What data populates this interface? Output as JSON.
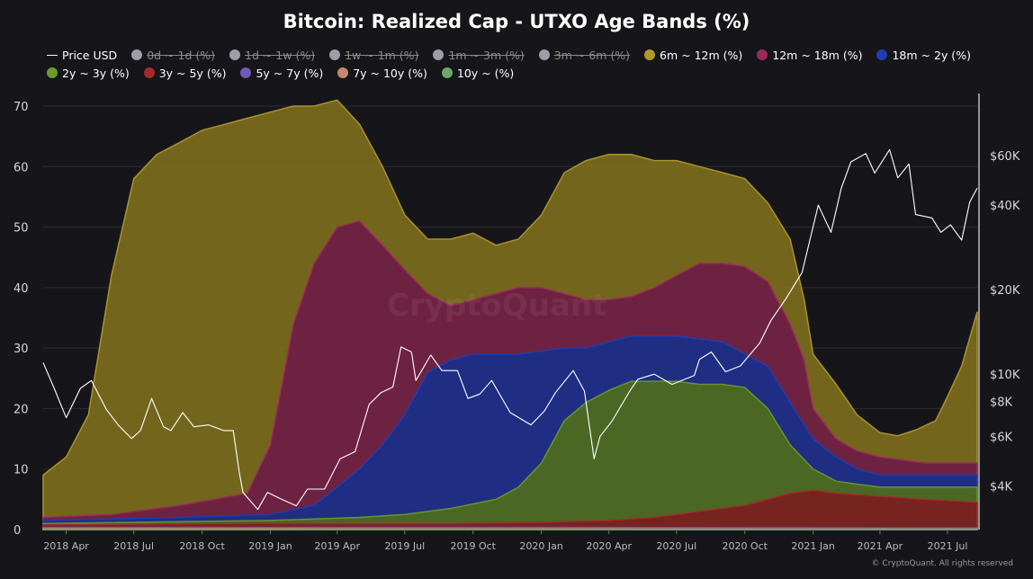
{
  "chart_data": {
    "type": "area",
    "title": "Bitcoin: Realized Cap - UTXO Age Bands (%)",
    "y_left_ticks": [
      0,
      10,
      20,
      30,
      40,
      50,
      60,
      70
    ],
    "y_left_range": [
      0,
      70
    ],
    "y_right_ticks": [
      "$4K",
      "$6K",
      "$8K",
      "$10K",
      "$20K",
      "$40K",
      "$60K"
    ],
    "y_right_values": [
      4000,
      6000,
      8000,
      10000,
      20000,
      40000,
      60000
    ],
    "y_right_scale": "log",
    "x_ticks": [
      "2018 Apr",
      "2018 Jul",
      "2018 Oct",
      "2019 Jan",
      "2019 Apr",
      "2019 Jul",
      "2019 Oct",
      "2020 Jan",
      "2020 Apr",
      "2020 Jul",
      "2020 Oct",
      "2021 Jan",
      "2021 Apr",
      "2021 Jul"
    ],
    "x_range": [
      "2018-03-01",
      "2021-08-10"
    ],
    "legend_position": "top",
    "grid": "horizontal",
    "series": [
      {
        "name": "Price USD",
        "type": "line",
        "axis": "right",
        "color": "#ffffff",
        "visible": true,
        "points": [
          [
            "2018-03-01",
            11000
          ],
          [
            "2018-03-15",
            9000
          ],
          [
            "2018-04-01",
            7000
          ],
          [
            "2018-04-20",
            8900
          ],
          [
            "2018-05-05",
            9500
          ],
          [
            "2018-05-25",
            7500
          ],
          [
            "2018-06-10",
            6600
          ],
          [
            "2018-06-28",
            5900
          ],
          [
            "2018-07-10",
            6300
          ],
          [
            "2018-07-25",
            8200
          ],
          [
            "2018-08-10",
            6500
          ],
          [
            "2018-08-20",
            6300
          ],
          [
            "2018-09-05",
            7300
          ],
          [
            "2018-09-20",
            6500
          ],
          [
            "2018-10-10",
            6600
          ],
          [
            "2018-10-30",
            6300
          ],
          [
            "2018-11-12",
            6300
          ],
          [
            "2018-11-20",
            4500
          ],
          [
            "2018-11-25",
            3800
          ],
          [
            "2018-12-15",
            3300
          ],
          [
            "2018-12-28",
            3800
          ],
          [
            "2019-01-15",
            3600
          ],
          [
            "2019-02-05",
            3400
          ],
          [
            "2019-02-20",
            3900
          ],
          [
            "2019-03-15",
            3900
          ],
          [
            "2019-04-05",
            5000
          ],
          [
            "2019-04-25",
            5300
          ],
          [
            "2019-05-14",
            7800
          ],
          [
            "2019-05-30",
            8600
          ],
          [
            "2019-06-15",
            9000
          ],
          [
            "2019-06-26",
            12500
          ],
          [
            "2019-07-10",
            12000
          ],
          [
            "2019-07-16",
            9500
          ],
          [
            "2019-08-05",
            11700
          ],
          [
            "2019-08-20",
            10300
          ],
          [
            "2019-09-10",
            10300
          ],
          [
            "2019-09-24",
            8200
          ],
          [
            "2019-10-10",
            8500
          ],
          [
            "2019-10-26",
            9500
          ],
          [
            "2019-11-20",
            7300
          ],
          [
            "2019-12-18",
            6600
          ],
          [
            "2020-01-05",
            7400
          ],
          [
            "2020-01-20",
            8600
          ],
          [
            "2020-02-13",
            10300
          ],
          [
            "2020-02-28",
            8700
          ],
          [
            "2020-03-12",
            5000
          ],
          [
            "2020-03-20",
            6000
          ],
          [
            "2020-04-05",
            6800
          ],
          [
            "2020-04-29",
            8700
          ],
          [
            "2020-05-10",
            9600
          ],
          [
            "2020-06-01",
            10000
          ],
          [
            "2020-06-25",
            9200
          ],
          [
            "2020-07-25",
            9900
          ],
          [
            "2020-08-01",
            11300
          ],
          [
            "2020-08-17",
            12000
          ],
          [
            "2020-09-05",
            10200
          ],
          [
            "2020-09-25",
            10700
          ],
          [
            "2020-10-21",
            12900
          ],
          [
            "2020-11-05",
            15500
          ],
          [
            "2020-11-25",
            18500
          ],
          [
            "2020-12-17",
            23000
          ],
          [
            "2021-01-08",
            40000
          ],
          [
            "2021-01-25",
            32000
          ],
          [
            "2021-02-08",
            46000
          ],
          [
            "2021-02-21",
            57000
          ],
          [
            "2021-03-13",
            61000
          ],
          [
            "2021-03-25",
            52000
          ],
          [
            "2021-04-14",
            63000
          ],
          [
            "2021-04-25",
            50000
          ],
          [
            "2021-05-10",
            56000
          ],
          [
            "2021-05-19",
            37000
          ],
          [
            "2021-06-10",
            36000
          ],
          [
            "2021-06-22",
            32000
          ],
          [
            "2021-07-05",
            34000
          ],
          [
            "2021-07-20",
            30000
          ],
          [
            "2021-07-31",
            41000
          ],
          [
            "2021-08-10",
            46000
          ]
        ]
      },
      {
        "name": "0d ~ 1d (%)",
        "color": "#9e9ea8",
        "visible": false
      },
      {
        "name": "1d ~ 1w (%)",
        "color": "#9e9ea8",
        "visible": false
      },
      {
        "name": "1w ~ 1m (%)",
        "color": "#9e9ea8",
        "visible": false
      },
      {
        "name": "1m ~ 3m (%)",
        "color": "#9e9ea8",
        "visible": false
      },
      {
        "name": "3m ~ 6m (%)",
        "color": "#9e9ea8",
        "visible": false
      },
      {
        "name": "6m ~ 12m (%)",
        "color": "#b09a2e",
        "fill": "#7a6a1e",
        "visible": true,
        "cumulative_top": [
          [
            "2018-03-01",
            9
          ],
          [
            "2018-04-01",
            12
          ],
          [
            "2018-05-01",
            19
          ],
          [
            "2018-06-01",
            42
          ],
          [
            "2018-07-01",
            58
          ],
          [
            "2018-08-01",
            62
          ],
          [
            "2018-09-01",
            64
          ],
          [
            "2018-10-01",
            66
          ],
          [
            "2018-11-01",
            67
          ],
          [
            "2018-12-01",
            68
          ],
          [
            "2019-01-01",
            69
          ],
          [
            "2019-02-01",
            70
          ],
          [
            "2019-03-01",
            70
          ],
          [
            "2019-04-01",
            71
          ],
          [
            "2019-05-01",
            67
          ],
          [
            "2019-06-01",
            60
          ],
          [
            "2019-07-01",
            52
          ],
          [
            "2019-08-01",
            48
          ],
          [
            "2019-09-01",
            48
          ],
          [
            "2019-10-01",
            49
          ],
          [
            "2019-11-01",
            47
          ],
          [
            "2019-12-01",
            48
          ],
          [
            "2020-01-01",
            52
          ],
          [
            "2020-02-01",
            59
          ],
          [
            "2020-03-01",
            61
          ],
          [
            "2020-04-01",
            62
          ],
          [
            "2020-05-01",
            62
          ],
          [
            "2020-06-01",
            61
          ],
          [
            "2020-07-01",
            61
          ],
          [
            "2020-08-01",
            60
          ],
          [
            "2020-09-01",
            59
          ],
          [
            "2020-10-01",
            58
          ],
          [
            "2020-11-01",
            54
          ],
          [
            "2020-12-01",
            48
          ],
          [
            "2020-12-20",
            38
          ],
          [
            "2021-01-01",
            29
          ],
          [
            "2021-02-01",
            24
          ],
          [
            "2021-03-01",
            19
          ],
          [
            "2021-04-01",
            16
          ],
          [
            "2021-04-25",
            15.5
          ],
          [
            "2021-05-20",
            16.5
          ],
          [
            "2021-06-15",
            18
          ],
          [
            "2021-07-01",
            22
          ],
          [
            "2021-07-20",
            27
          ],
          [
            "2021-08-10",
            36
          ]
        ]
      },
      {
        "name": "12m ~ 18m (%)",
        "color": "#9b2c5a",
        "fill": "#6e1f44",
        "visible": true,
        "cumulative_top": [
          [
            "2018-03-01",
            2
          ],
          [
            "2018-06-01",
            2.5
          ],
          [
            "2018-09-01",
            4
          ],
          [
            "2018-12-01",
            6
          ],
          [
            "2019-01-01",
            14
          ],
          [
            "2019-02-01",
            34
          ],
          [
            "2019-03-01",
            44
          ],
          [
            "2019-04-01",
            50
          ],
          [
            "2019-05-01",
            51
          ],
          [
            "2019-06-01",
            47
          ],
          [
            "2019-07-01",
            43
          ],
          [
            "2019-08-01",
            39
          ],
          [
            "2019-09-01",
            37
          ],
          [
            "2019-10-01",
            38
          ],
          [
            "2019-11-01",
            39
          ],
          [
            "2019-12-01",
            40
          ],
          [
            "2020-01-01",
            40
          ],
          [
            "2020-02-01",
            39
          ],
          [
            "2020-03-01",
            38
          ],
          [
            "2020-04-01",
            38
          ],
          [
            "2020-05-01",
            38.5
          ],
          [
            "2020-06-01",
            40
          ],
          [
            "2020-07-01",
            42
          ],
          [
            "2020-08-01",
            44
          ],
          [
            "2020-09-01",
            44
          ],
          [
            "2020-10-01",
            43.5
          ],
          [
            "2020-11-01",
            41
          ],
          [
            "2020-12-01",
            34
          ],
          [
            "2020-12-20",
            28
          ],
          [
            "2021-01-01",
            20
          ],
          [
            "2021-02-01",
            15
          ],
          [
            "2021-03-01",
            13
          ],
          [
            "2021-04-01",
            12
          ],
          [
            "2021-05-01",
            11.5
          ],
          [
            "2021-06-01",
            11
          ],
          [
            "2021-08-10",
            11
          ]
        ]
      },
      {
        "name": "18m ~ 2y (%)",
        "color": "#1f3db5",
        "fill": "#1b2f86",
        "visible": true,
        "cumulative_top": [
          [
            "2018-03-01",
            1.5
          ],
          [
            "2018-09-01",
            2
          ],
          [
            "2019-01-01",
            2.5
          ],
          [
            "2019-03-01",
            4
          ],
          [
            "2019-04-01",
            7
          ],
          [
            "2019-05-01",
            10
          ],
          [
            "2019-06-01",
            14
          ],
          [
            "2019-07-01",
            19
          ],
          [
            "2019-08-01",
            26
          ],
          [
            "2019-09-01",
            28
          ],
          [
            "2019-10-01",
            29
          ],
          [
            "2019-11-01",
            29
          ],
          [
            "2019-12-01",
            29
          ],
          [
            "2020-01-01",
            29.5
          ],
          [
            "2020-02-01",
            30
          ],
          [
            "2020-03-01",
            30
          ],
          [
            "2020-04-01",
            31
          ],
          [
            "2020-05-01",
            32
          ],
          [
            "2020-06-01",
            32
          ],
          [
            "2020-07-01",
            32
          ],
          [
            "2020-08-01",
            31.5
          ],
          [
            "2020-09-01",
            31
          ],
          [
            "2020-10-01",
            29
          ],
          [
            "2020-11-01",
            27
          ],
          [
            "2020-12-01",
            21
          ],
          [
            "2021-01-01",
            15
          ],
          [
            "2021-02-01",
            12
          ],
          [
            "2021-03-01",
            10
          ],
          [
            "2021-04-01",
            9
          ],
          [
            "2021-06-01",
            9
          ],
          [
            "2021-08-10",
            9
          ]
        ]
      },
      {
        "name": "2y ~ 3y (%)",
        "color": "#6b9a2c",
        "fill": "#4d6b1f",
        "visible": true,
        "cumulative_top": [
          [
            "2018-03-01",
            1
          ],
          [
            "2019-01-01",
            1.5
          ],
          [
            "2019-05-01",
            2
          ],
          [
            "2019-07-01",
            2.5
          ],
          [
            "2019-09-01",
            3.5
          ],
          [
            "2019-11-01",
            5
          ],
          [
            "2019-12-01",
            7
          ],
          [
            "2020-01-01",
            11
          ],
          [
            "2020-02-01",
            18
          ],
          [
            "2020-03-01",
            21
          ],
          [
            "2020-04-01",
            23
          ],
          [
            "2020-05-01",
            24.5
          ],
          [
            "2020-06-01",
            24.5
          ],
          [
            "2020-07-01",
            24.5
          ],
          [
            "2020-08-01",
            24
          ],
          [
            "2020-09-01",
            24
          ],
          [
            "2020-10-01",
            23.5
          ],
          [
            "2020-11-01",
            20
          ],
          [
            "2020-12-01",
            14
          ],
          [
            "2021-01-01",
            10
          ],
          [
            "2021-02-01",
            8
          ],
          [
            "2021-03-01",
            7.5
          ],
          [
            "2021-04-01",
            7
          ],
          [
            "2021-06-01",
            7
          ],
          [
            "2021-08-10",
            7
          ]
        ]
      },
      {
        "name": "3y ~ 5y (%)",
        "color": "#a32a2a",
        "fill": "#7a2020",
        "visible": true,
        "cumulative_top": [
          [
            "2018-03-01",
            0.8
          ],
          [
            "2019-01-01",
            1
          ],
          [
            "2019-09-01",
            1
          ],
          [
            "2020-01-01",
            1.2
          ],
          [
            "2020-04-01",
            1.5
          ],
          [
            "2020-06-01",
            2
          ],
          [
            "2020-08-01",
            3
          ],
          [
            "2020-10-01",
            4
          ],
          [
            "2020-11-01",
            5
          ],
          [
            "2020-12-01",
            6
          ],
          [
            "2021-01-01",
            6.5
          ],
          [
            "2021-02-01",
            6
          ],
          [
            "2021-04-01",
            5.5
          ],
          [
            "2021-06-01",
            5
          ],
          [
            "2021-08-10",
            4.5
          ]
        ]
      },
      {
        "name": "5y ~ 7y (%)",
        "color": "#6e5ab8",
        "fill": "#5a4ca0",
        "visible": true,
        "cumulative_top": [
          [
            "2018-03-01",
            0.35
          ],
          [
            "2020-01-01",
            0.35
          ],
          [
            "2021-08-10",
            0.25
          ]
        ]
      },
      {
        "name": "7y ~ 10y (%)",
        "color": "#c28a6a",
        "fill": "#9a6e56",
        "visible": true,
        "cumulative_top": [
          [
            "2018-03-01",
            0.15
          ],
          [
            "2021-08-10",
            0.1
          ]
        ]
      },
      {
        "name": "10y ~ (%)",
        "color": "#6aa86a",
        "fill": "#4e7e4e",
        "visible": true,
        "cumulative_top": [
          [
            "2018-03-01",
            0.05
          ],
          [
            "2021-08-10",
            0.05
          ]
        ]
      }
    ]
  },
  "watermark": "CryptoQuant",
  "credit": "© CryptoQuant. All rights reserved"
}
